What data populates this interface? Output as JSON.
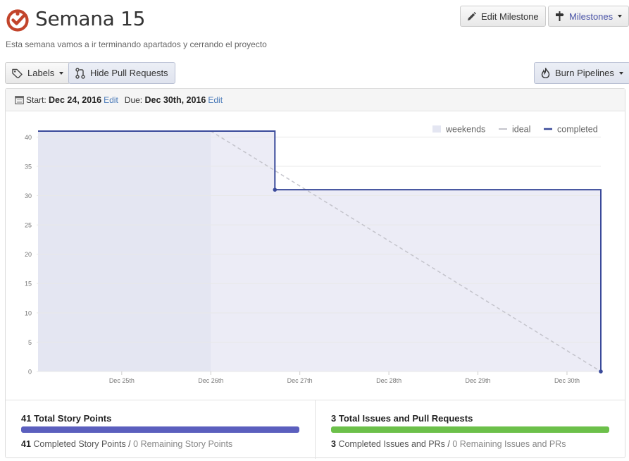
{
  "header": {
    "title": "Semana 15",
    "description": "Esta semana vamos a ir terminando apartados y cerrando el proyecto",
    "logo_color": "#c2442b"
  },
  "toolbar": {
    "edit_milestone": "Edit Milestone",
    "milestones": "Milestones",
    "labels": "Labels",
    "hide_pull_requests": "Hide Pull Requests",
    "burn_pipelines": "Burn Pipelines"
  },
  "dates": {
    "start_label": "Start:",
    "start_value": "Dec 24, 2016",
    "start_edit": "Edit",
    "due_label": "Due:",
    "due_value": "Dec 30th, 2016",
    "due_edit": "Edit"
  },
  "chart_data": {
    "type": "line",
    "legend": [
      "weekends",
      "ideal",
      "completed"
    ],
    "legend_placement": "top-right",
    "x_ticks": [
      "Dec 25th",
      "Dec 26th",
      "Dec 27th",
      "Dec 28th",
      "Dec 29th",
      "Dec 30th"
    ],
    "y_ticks": [
      0,
      5,
      10,
      15,
      20,
      25,
      30,
      35,
      40
    ],
    "ylim": [
      0,
      41
    ],
    "xlim_days": [
      24.06,
      30.38
    ],
    "weekend": {
      "start": 24.06,
      "end": 26.0
    },
    "ideal": [
      {
        "x": 26.0,
        "y": 41
      },
      {
        "x": 30.38,
        "y": 0
      }
    ],
    "completed": [
      {
        "x": 24.06,
        "y": 41
      },
      {
        "x": 26.72,
        "y": 41
      },
      {
        "x": 26.72,
        "y": 31
      },
      {
        "x": 30.38,
        "y": 31
      },
      {
        "x": 30.38,
        "y": 0
      }
    ],
    "markers": [
      {
        "x": 26.72,
        "y": 31
      },
      {
        "x": 30.38,
        "y": 0
      }
    ],
    "colors": {
      "completed": "#3a4a9a",
      "ideal": "#c4c4cc",
      "weekends": "#e4e6f2",
      "area": "#ececf6",
      "grid": "#e8e8e8"
    }
  },
  "stats": {
    "story": {
      "title": "41 Total Story Points",
      "completed_n": "41",
      "completed_text": "Completed Story Points /",
      "remaining_text": "0 Remaining Story Points",
      "fill_fraction": 1.0,
      "color": "#5b5fbe"
    },
    "issues": {
      "title": "3 Total Issues and Pull Requests",
      "completed_n": "3",
      "completed_text": "Completed Issues and PRs /",
      "remaining_text": "0 Remaining Issues and PRs",
      "fill_fraction": 1.0,
      "color": "#6cc04a"
    }
  }
}
